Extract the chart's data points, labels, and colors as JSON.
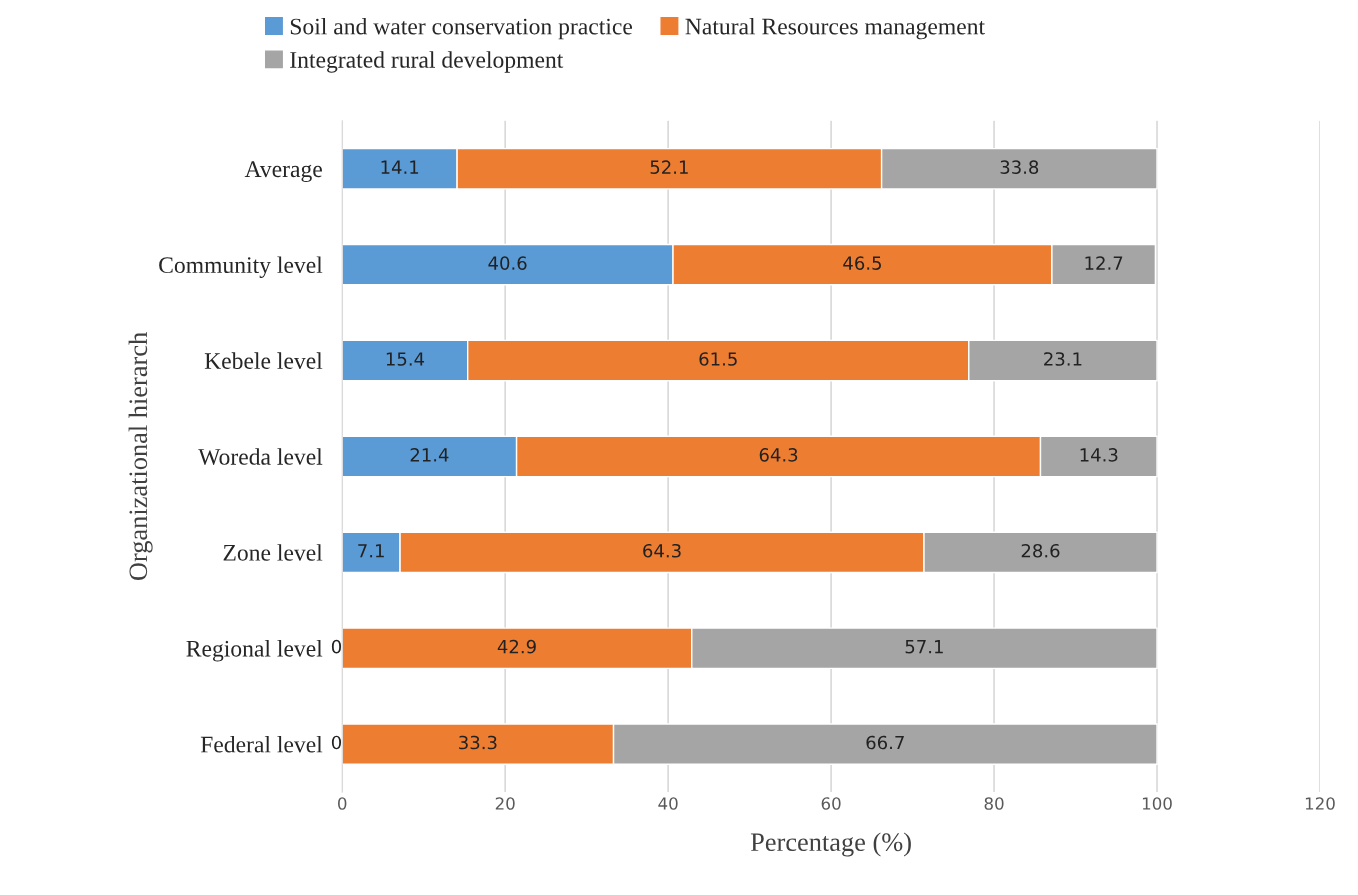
{
  "chart_data": {
    "type": "bar",
    "orientation": "horizontal",
    "stacked": true,
    "categories": [
      "Average",
      "Community level",
      "Kebele level",
      "Woreda level",
      "Zone level",
      "Regional level",
      "Federal level"
    ],
    "series": [
      {
        "name": "Soil and water conservation practice",
        "color": "#5b9bd5",
        "values": [
          14.1,
          40.6,
          15.4,
          21.4,
          7.1,
          0,
          0
        ],
        "value_labels": [
          "14.1",
          "40.6",
          "15.4",
          "21.4",
          "7.1",
          null,
          null
        ]
      },
      {
        "name": "Natural Resources management",
        "color": "#ed7d31",
        "values": [
          52.1,
          46.5,
          61.5,
          64.3,
          64.3,
          42.9,
          33.3
        ],
        "value_labels": [
          "52.1",
          "46.5",
          "61.5",
          "64.3",
          "64.3",
          "42.9",
          "33.3"
        ]
      },
      {
        "name": "Integrated rural development",
        "color": "#a5a5a5",
        "values": [
          33.8,
          12.7,
          23.1,
          14.3,
          28.6,
          57.1,
          66.7
        ],
        "value_labels": [
          "33.8",
          "12.7",
          "23.1",
          "14.3",
          "28.6",
          "57.1",
          "66.7"
        ]
      }
    ],
    "annotations": [
      {
        "text": "0",
        "x": 0,
        "y": "Regional level"
      },
      {
        "text": "0",
        "x": 0,
        "y": "Federal level"
      }
    ],
    "xlabel": "Percentage (%)",
    "ylabel": "Organizational hierarch",
    "xlim": [
      0,
      120
    ],
    "xticks": [
      0,
      20,
      40,
      60,
      80,
      100,
      120
    ],
    "grid": "x",
    "legend": "top"
  }
}
